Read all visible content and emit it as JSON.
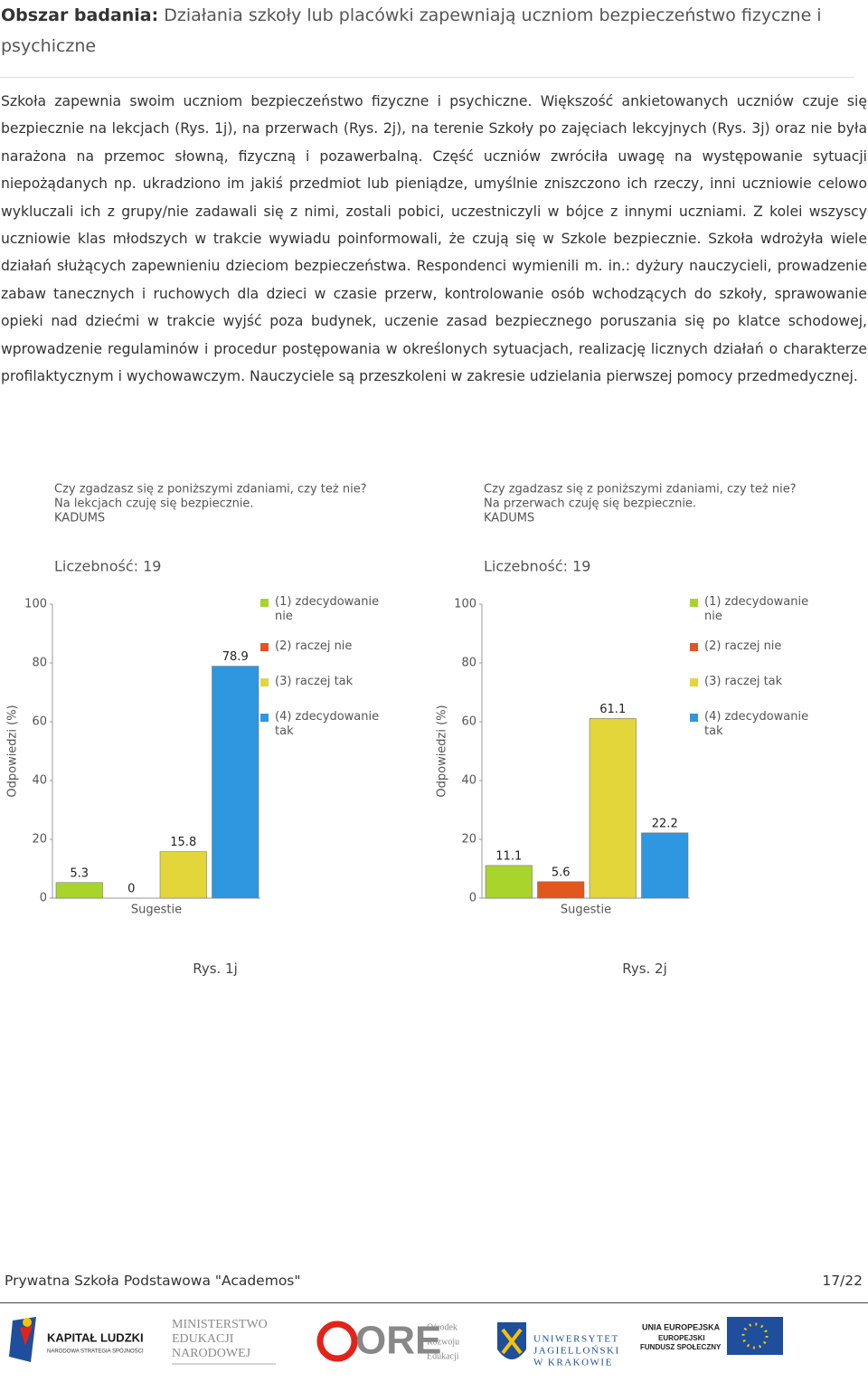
{
  "heading": {
    "label": "Obszar badania:",
    "text": "Działania szkoły lub placówki zapewniają uczniom bezpieczeństwo fizyczne i psychiczne"
  },
  "paragraph": "Szkoła zapewnia swoim uczniom bezpieczeństwo fizyczne i psychiczne. Większość ankietowanych uczniów czuje się bezpiecznie na lekcjach (Rys. 1j), na przerwach (Rys. 2j), na terenie Szkoły po zajęciach lekcyjnych (Rys. 3j) oraz nie była narażona na przemoc słowną, fizyczną i pozawerbalną. Część uczniów zwróciła uwagę na występowanie sytuacji niepożądanych np. ukradziono im jakiś przedmiot lub pieniądze, umyślnie zniszczono ich rzeczy, inni uczniowie celowo wykluczali ich z grupy/nie zadawali się z nimi, zostali pobici, uczestniczyli w bójce z innymi uczniami. Z kolei wszyscy uczniowie klas młodszych w trakcie wywiadu poinformowali, że czują się w Szkole bezpiecznie. Szkoła wdrożyła wiele działań służących zapewnieniu dzieciom bezpieczeństwa. Respondenci wymienili m. in.: dyżury nauczycieli, prowadzenie zabaw tanecznych i ruchowych dla dzieci w czasie przerw, kontrolowanie osób wchodzących do szkoły, sprawowanie opieki nad dziećmi w trakcie wyjść poza budynek, uczenie zasad bezpiecznego poruszania się po klatce schodowej, wprowadzenie regulaminów i procedur postępowania w określonych sytuacjach, realizację licznych działań o charakterze profilaktycznym i wychowawczym. Nauczyciele są przeszkoleni w zakresie udzielania pierwszej pomocy przedmedycznej.",
  "chart_data": [
    {
      "type": "bar",
      "question": "Czy zgadzasz się z poniższymi zdaniami, czy też nie?",
      "statement": "Na lekcjach czuję się bezpiecznie.",
      "source": "KADUMS",
      "count_label": "Liczebność: 19",
      "ylabel": "Odpowiedzi (%)",
      "xlabel": "Sugestie",
      "categories": [
        "(1) zdecydowanie nie",
        "(2) raczej nie",
        "(3) raczej tak",
        "(4) zdecydowanie tak"
      ],
      "colors": [
        "#a9d42c",
        "#e2571e",
        "#e2d63a",
        "#2f96e0"
      ],
      "values": [
        5.3,
        0,
        15.8,
        78.9
      ],
      "ylim": [
        0,
        100
      ],
      "yticks": [
        0,
        20,
        40,
        60,
        80,
        100
      ]
    },
    {
      "type": "bar",
      "question": "Czy zgadzasz się z poniższymi zdaniami, czy też nie?",
      "statement": "Na przerwach czuję się bezpiecznie.",
      "source": "KADUMS",
      "count_label": "Liczebność: 19",
      "ylabel": "Odpowiedzi (%)",
      "xlabel": "Sugestie",
      "categories": [
        "(1) zdecydowanie nie",
        "(2) raczej nie",
        "(3) raczej tak",
        "(4) zdecydowanie tak"
      ],
      "colors": [
        "#a9d42c",
        "#e2571e",
        "#e2d63a",
        "#2f96e0"
      ],
      "values": [
        11.1,
        5.6,
        61.1,
        22.2
      ],
      "ylim": [
        0,
        100
      ],
      "yticks": [
        0,
        20,
        40,
        60,
        80,
        100
      ]
    }
  ],
  "captions": [
    "Rys. 1j",
    "Rys. 2j"
  ],
  "footer": {
    "school": "Prywatna Szkoła Podstawowa \"Academos\"",
    "page": "17/22"
  },
  "logos": {
    "kl_title": "KAPITAŁ LUDZKI",
    "kl_sub": "NARODOWA STRATEGIA SPÓJNOŚCI",
    "men": [
      "MINISTERSTWO",
      "EDUKACJI",
      "NARODOWEJ"
    ],
    "ore": "ORE",
    "ore_sub": [
      "Ośrodek",
      "Rozwoju",
      "Edukacji"
    ],
    "uj": [
      "UNIWERSYTET",
      "JAGIELLOŃSKI",
      "W KRAKOWIE"
    ],
    "ue": [
      "UNIA EUROPEJSKA",
      "EUROPEJSKI",
      "FUNDUSZ SPOŁECZNY"
    ]
  }
}
